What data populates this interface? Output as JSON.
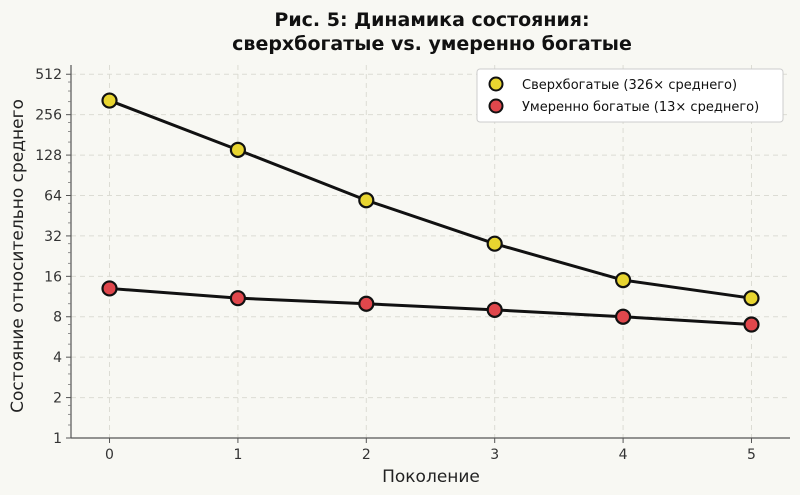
{
  "chart_data": {
    "type": "line",
    "title_line1": "Рис. 5: Динамика состояния:",
    "title_line2": "сверхбогатые vs. умеренно богатые",
    "xlabel": "Поколение",
    "ylabel": "Состояние относительно среднего",
    "x": [
      0,
      1,
      2,
      3,
      4,
      5
    ],
    "x_ticks": [
      "0",
      "1",
      "2",
      "3",
      "4",
      "5"
    ],
    "y_scale": "log2",
    "ylim": [
      1,
      600
    ],
    "y_ticks": [
      1,
      2,
      4,
      8,
      16,
      32,
      64,
      128,
      256,
      512
    ],
    "y_tick_labels": [
      "1",
      "2",
      "4",
      "8",
      "16",
      "32",
      "64",
      "128",
      "256",
      "512"
    ],
    "grid": true,
    "legend_position": "top-right",
    "series": [
      {
        "name": "Сверхбогатые (326× среднего)",
        "color": "#e8d530",
        "values": [
          326,
          140,
          59,
          28,
          15,
          11
        ]
      },
      {
        "name": "Умеренно богатые (13× среднего)",
        "color": "#e0474c",
        "values": [
          13,
          11,
          10,
          9,
          8,
          7
        ]
      }
    ]
  }
}
